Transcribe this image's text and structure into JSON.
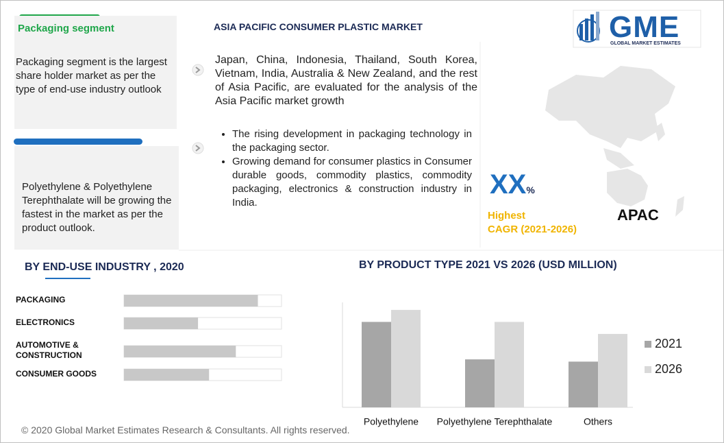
{
  "left_panels": [
    {
      "heading": "Packaging segment",
      "text": "Packaging segment is the largest share holder market as per the type of end-use industry outlook"
    },
    {
      "text": "Polyethylene & Polyethylene Terephthalate will be growing the fastest in the market as per the product outlook."
    }
  ],
  "header": {
    "title": "ASIA PACIFIC CONSUMER PLASTIC MARKET",
    "intro": "Japan, China, Indonesia, Thailand, South Korea, Vietnam, India, Australia & New Zealand, and the rest of Asia Pacific, are evaluated for the analysis of the Asia Pacific market  growth",
    "bullets": [
      "The rising development in packaging technology in the packaging sector.",
      "Growing demand for consumer plastics in Consumer durable goods, commodity plastics, commodity packaging, electronics & construction industry in India."
    ]
  },
  "logo": {
    "name": "GME",
    "tagline": "GLOBAL MARKET ESTIMATES"
  },
  "highlight": {
    "value": "XX",
    "unit": "%",
    "label": "Highest",
    "period": "CAGR (2021-2026)",
    "region": "APAC"
  },
  "chart_data": [
    {
      "type": "hbar",
      "title": "BY  END-USE INDUSTRY , 2020",
      "categories": [
        "PACKAGING",
        "ELECTRONICS",
        "AUTOMOTIVE & CONSTRUCTION",
        "CONSUMER  GOODS"
      ],
      "values": [
        85,
        47,
        71,
        54
      ],
      "xlim": [
        0,
        100
      ],
      "color": "#c8c8c8"
    },
    {
      "type": "bar",
      "title": "BY PRODUCT TYPE 2021 VS 2026 (USD MILLION)",
      "categories": [
        "Polyethylene",
        "Polyethylene Terephthalate",
        "Others"
      ],
      "series": [
        {
          "name": "2021",
          "color": "#a6a6a6",
          "values": [
            114,
            64,
            61
          ]
        },
        {
          "name": "2026",
          "color": "#d9d9d9",
          "values": [
            130,
            114,
            98
          ]
        }
      ],
      "ylim": [
        0,
        140
      ],
      "legend": "right"
    }
  ],
  "footer": "© 2020 Global Market Estimates Research & Consultants. All rights reserved."
}
